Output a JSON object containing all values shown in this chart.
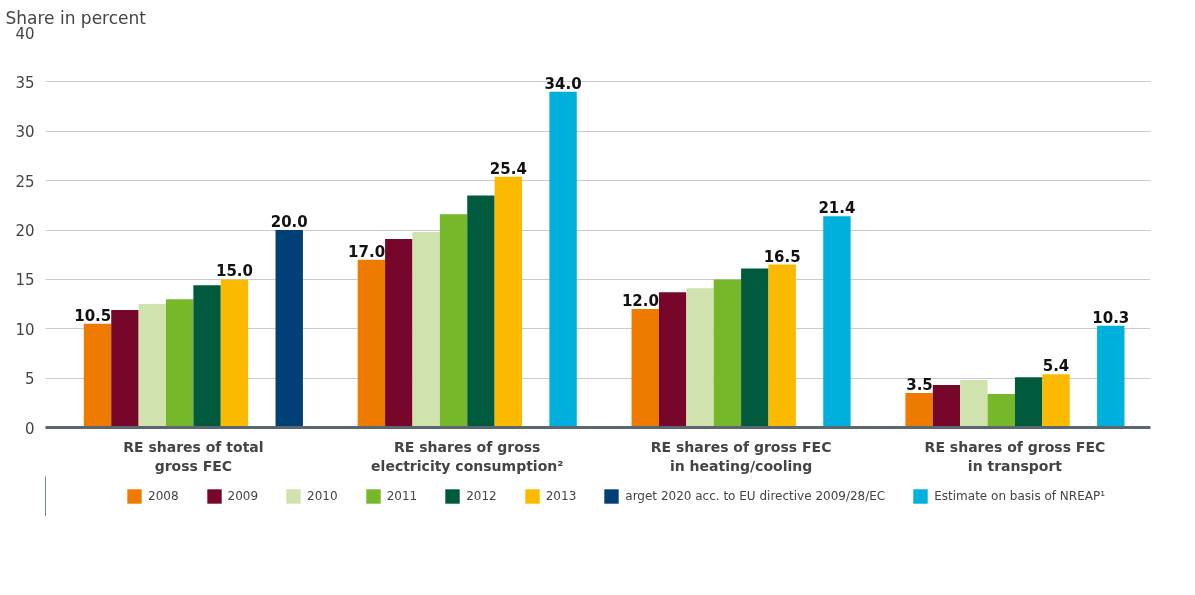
{
  "chart_data": {
    "type": "bar",
    "ylabel": "Share in percent",
    "categories": [
      "RE shares of total\ngross FEC",
      "RE shares of gross\nelectricity consumption²",
      "RE shares of gross FEC\nin heating/cooling",
      "RE shares of gross FEC\nin transport"
    ],
    "ylim": [
      0,
      40
    ],
    "yticks": [
      0,
      5,
      10,
      15,
      20,
      25,
      30,
      35,
      40
    ],
    "grid": "y",
    "legend": "bottom",
    "series": [
      {
        "name": "2008",
        "color": "#ee7b00",
        "values": [
          10.5,
          17.0,
          12.0,
          3.5
        ],
        "value_labels": [
          "10.5",
          "17.0",
          "12.0",
          "3.5"
        ]
      },
      {
        "name": "2009",
        "color": "#76072b",
        "values": [
          11.9,
          19.1,
          13.7,
          4.3
        ]
      },
      {
        "name": "2010",
        "color": "#d0e2ad",
        "values": [
          12.5,
          19.8,
          14.1,
          4.8
        ]
      },
      {
        "name": "2011",
        "color": "#76b82a",
        "values": [
          13.0,
          21.6,
          15.0,
          3.4
        ]
      },
      {
        "name": "2012",
        "color": "#005a3e",
        "values": [
          14.4,
          23.5,
          16.1,
          5.1
        ]
      },
      {
        "name": "2013",
        "color": "#fbb900",
        "values": [
          15.0,
          25.4,
          16.5,
          5.4
        ],
        "value_labels": [
          "15.0",
          "25.4",
          "16.5",
          "5.4"
        ]
      },
      {
        "name": "arget 2020 acc. to EU directive 2009/28/EC",
        "color": "#004077",
        "values": [
          20.0,
          null,
          null,
          null
        ],
        "value_labels": [
          "20.0",
          null,
          null,
          null
        ]
      },
      {
        "name": "Estimate on basis of NREAP¹",
        "color": "#00b0dc",
        "values": [
          null,
          34.0,
          21.4,
          10.3
        ],
        "value_labels": [
          null,
          "34.0",
          "21.4",
          "10.3"
        ]
      }
    ]
  }
}
